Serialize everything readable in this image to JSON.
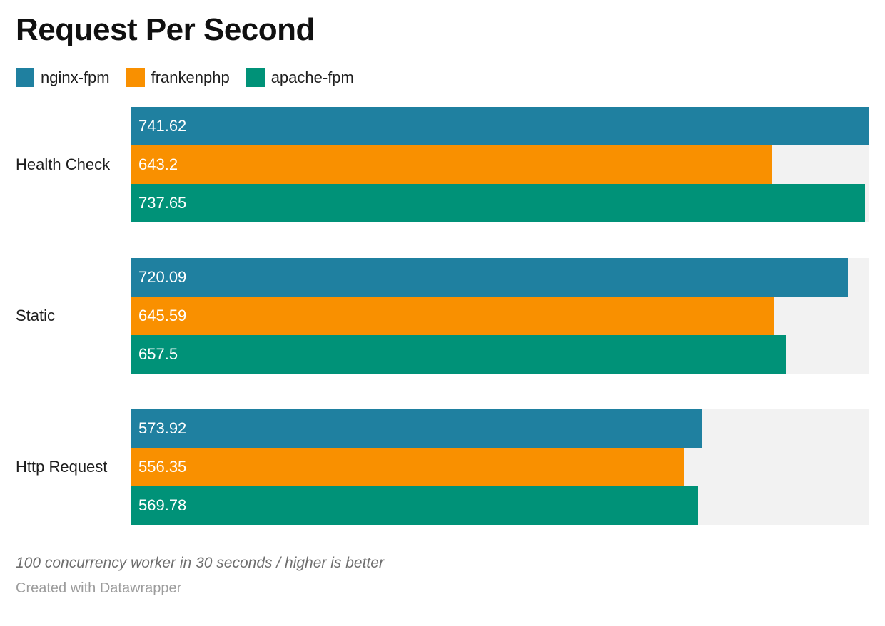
{
  "header": {
    "title": "Request Per Second"
  },
  "legend": {
    "items": [
      {
        "label": "nginx-fpm",
        "color": "#1f80a0"
      },
      {
        "label": "frankenphp",
        "color": "#f99000"
      },
      {
        "label": "apache-fpm",
        "color": "#009278"
      }
    ]
  },
  "chart_data": {
    "type": "bar",
    "orientation": "horizontal",
    "title": "Request Per Second",
    "categories": [
      "Health Check",
      "Static",
      "Http Request"
    ],
    "series": [
      {
        "name": "nginx-fpm",
        "color": "#1f80a0",
        "values": [
          741.62,
          720.09,
          573.92
        ]
      },
      {
        "name": "frankenphp",
        "color": "#f99000",
        "values": [
          643.2,
          645.59,
          556.35
        ]
      },
      {
        "name": "apache-fpm",
        "color": "#009278",
        "values": [
          737.65,
          657.5,
          569.78
        ]
      }
    ],
    "xlim": [
      0,
      741.62
    ],
    "grid": false,
    "axis_ticks": "none",
    "value_labels": "inside-start",
    "legend_position": "top",
    "track_color": "#f2f2f2"
  },
  "footer": {
    "notes": "100 concurrency worker in 30 seconds / higher is better",
    "attribution": "Created with Datawrapper"
  }
}
